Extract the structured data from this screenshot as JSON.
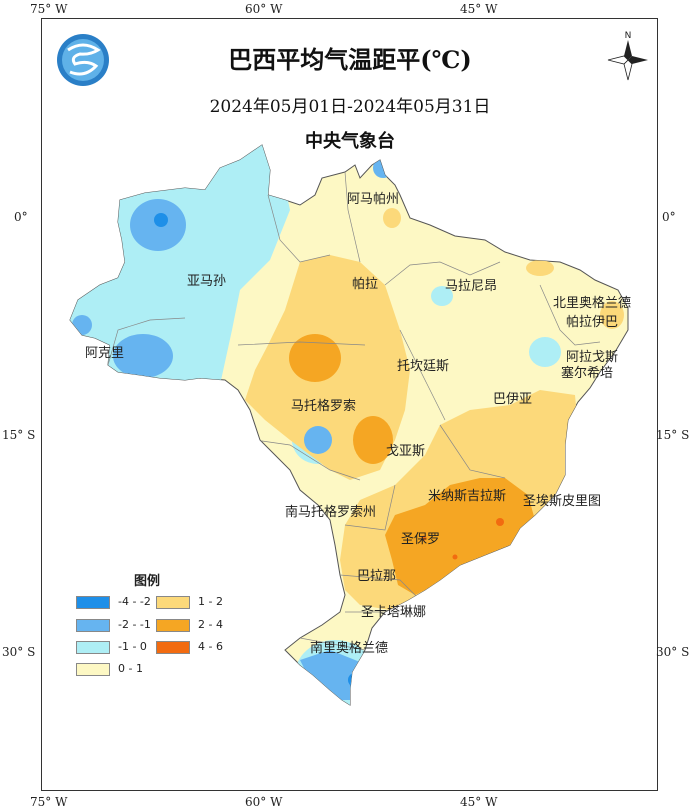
{
  "title": "巴西平均气温距平(℃)",
  "date_range": "2024年05月01日-2024年05月31日",
  "organization": "中央气象台",
  "top_ticks": [
    "75° W",
    "60° W",
    "45° W"
  ],
  "bottom_ticks": [
    "75° W",
    "60° W",
    "45° W"
  ],
  "left_ticks": [
    "0°",
    "15° S",
    "30° S"
  ],
  "right_ticks": [
    "0°",
    "15° S",
    "30° S"
  ],
  "compass": {
    "label": "N"
  },
  "logo": {
    "icon": "cma-logo-icon"
  },
  "regions": [
    "阿马帕州",
    "亚马孙",
    "帕拉",
    "马拉尼昂",
    "北里奥格兰德",
    "帕拉伊巴",
    "阿克里",
    "阿拉戈斯",
    "塞尔希培",
    "托坎廷斯",
    "巴伊亚",
    "马托格罗索",
    "戈亚斯",
    "米纳斯吉拉斯",
    "圣埃斯皮里图",
    "南马托格罗索州",
    "圣保罗",
    "巴拉那",
    "圣卡塔琳娜",
    "南里奥格兰德"
  ],
  "legend": {
    "title": "图例",
    "items": [
      {
        "label": "-4 - -2",
        "color": "#1e8fe8"
      },
      {
        "label": "1 - 2",
        "color": "#fcd97a"
      },
      {
        "label": "-2 - -1",
        "color": "#66b4f0"
      },
      {
        "label": "2 - 4",
        "color": "#f5a623"
      },
      {
        "label": "-1 - 0",
        "color": "#aeeef5"
      },
      {
        "label": "4 - 6",
        "color": "#f26b10"
      },
      {
        "label": "0 - 1",
        "color": "#fdf8c4"
      }
    ]
  }
}
